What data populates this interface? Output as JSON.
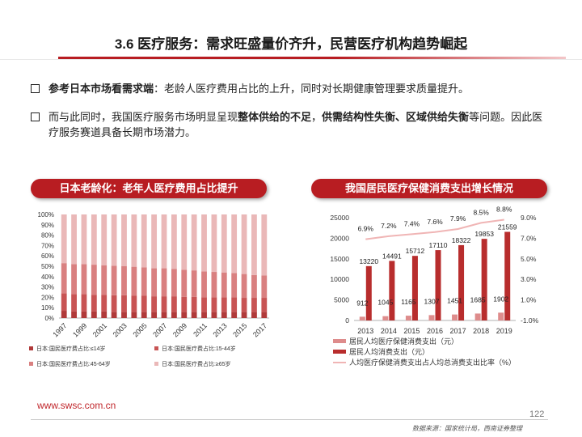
{
  "header": {
    "title": "3.6 医疗服务：需求旺盛量价齐升，民营医疗机构趋势崛起"
  },
  "bullets": [
    {
      "bold": "参考日本市场看需求端",
      "text": "：老龄人医疗费用占比的上升，同时对长期健康管理要求质量提升。"
    },
    {
      "pre": "而与此同时，我国医疗服务市场明显呈现",
      "bold1": "整体供给的不足",
      "mid": "，",
      "bold2": "供需结构性失衡、区域供给失衡",
      "post": "等问题。因此医疗服务赛道具备长期市场潜力。"
    }
  ],
  "panels": {
    "left_title": "日本老龄化：老年人医疗费用占比提升",
    "right_title": "我国居民医疗保健消费支出增长情况"
  },
  "chart_data": [
    {
      "type": "bar",
      "stacked": true,
      "categories": [
        "1997",
        "1998",
        "1999",
        "2000",
        "2001",
        "2002",
        "2003",
        "2004",
        "2005",
        "2006",
        "2007",
        "2008",
        "2009",
        "2010",
        "2011",
        "2012",
        "2013",
        "2014",
        "2015",
        "2016",
        "2017"
      ],
      "tick_labels": [
        "1997",
        "1999",
        "2001",
        "2003",
        "2005",
        "2007",
        "2009",
        "2011",
        "2013",
        "2015",
        "2017"
      ],
      "y_ticks": [
        "0%",
        "10%",
        "20%",
        "30%",
        "40%",
        "50%",
        "60%",
        "70%",
        "80%",
        "90%",
        "100%"
      ],
      "ylim": [
        0,
        100
      ],
      "series": [
        {
          "name": "日本:国民医疗费占比:≤14岁",
          "color": "#b03a3a",
          "values": [
            7,
            6.5,
            6.5,
            6.5,
            6.5,
            6,
            6,
            6,
            6,
            6,
            6,
            6,
            6,
            6,
            6,
            6,
            6,
            6,
            6,
            6,
            6
          ]
        },
        {
          "name": "日本:国民医疗费占比:15-44岁",
          "color": "#c85454",
          "values": [
            17,
            16.5,
            16.5,
            16,
            16,
            16,
            16,
            15.5,
            15.5,
            15,
            15,
            15,
            14.5,
            14.5,
            14,
            14,
            14,
            14,
            13.5,
            13.5,
            13.5
          ]
        },
        {
          "name": "日本:国民医疗费占比:45-64岁",
          "color": "#d98080",
          "values": [
            29,
            29,
            29,
            29,
            28.5,
            28.5,
            28,
            28,
            27.5,
            27,
            27,
            26.5,
            26,
            25.5,
            25,
            24.5,
            24,
            23.5,
            23,
            22,
            21.5
          ]
        },
        {
          "name": "日本:国民医疗费占比:≥65岁",
          "color": "#eab8b8",
          "values": [
            47,
            48,
            48,
            48.5,
            49,
            49.5,
            50,
            50.5,
            51,
            52,
            52,
            52.5,
            53.5,
            54,
            55,
            55.5,
            56,
            56.5,
            57.5,
            58.5,
            59
          ]
        }
      ]
    },
    {
      "type": "bar",
      "categories": [
        "2013",
        "2014",
        "2015",
        "2016",
        "2017",
        "2018",
        "2019"
      ],
      "y_left_ticks": [
        "0",
        "5000",
        "10000",
        "15000",
        "20000",
        "25000"
      ],
      "ylim_left": [
        0,
        25000
      ],
      "y_right_ticks": [
        "-1.0%",
        "1.0%",
        "3.0%",
        "5.0%",
        "7.0%",
        "9.0%"
      ],
      "ylim_right": [
        -1,
        9
      ],
      "series": [
        {
          "name": "居民人均医疗保健消费支出（元）",
          "color": "#de8c8c",
          "values": [
            912,
            1045,
            1165,
            1307,
            1451,
            1685,
            1902
          ]
        },
        {
          "name": "居民人均消费支出（元）",
          "color": "#b82d2d",
          "values": [
            13220,
            14491,
            15712,
            17110,
            18322,
            19853,
            21559
          ]
        },
        {
          "name": "人均医疗保健消费支出占人均总消费支出比率（%）",
          "color": "#f0b5b5",
          "type": "line",
          "axis": "right",
          "values": [
            6.9,
            7.2,
            7.4,
            7.6,
            7.9,
            8.5,
            8.8
          ],
          "labels": [
            "6.9%",
            "7.2%",
            "7.4%",
            "7.6%",
            "7.9%",
            "8.5%",
            "8.8%"
          ]
        }
      ]
    }
  ],
  "footer": {
    "url": "www.swsc.com.cn",
    "page": "122",
    "source": "数据来源：国家统计局，西南证券整理"
  }
}
